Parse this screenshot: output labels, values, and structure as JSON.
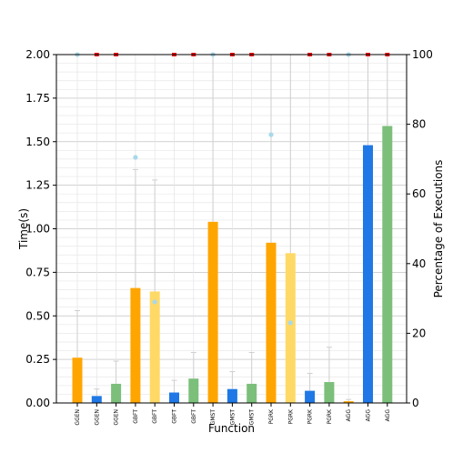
{
  "chart_data": {
    "type": "bar",
    "title": "",
    "xlabel": "Function",
    "ylabel": "Time(s)",
    "y2label": "Percentage of Executions",
    "ylim": [
      0,
      2.0
    ],
    "y2lim": [
      0,
      100
    ],
    "yticks": [
      "0.00",
      "0.25",
      "0.50",
      "0.75",
      "1.00",
      "1.25",
      "1.50",
      "1.75",
      "2.00"
    ],
    "y2ticks": [
      "0",
      "20",
      "40",
      "60",
      "80",
      "100"
    ],
    "grid": true,
    "legend": "none",
    "categories": [
      "GGEN",
      "GGEN",
      "GGEN",
      "GBFT",
      "GBFT",
      "GBFT",
      "GBFT",
      "GMST",
      "GMST",
      "GMST",
      "PGRK",
      "PGRK",
      "PGRK",
      "PGRK",
      "AGG",
      "AGG",
      "AGG"
    ],
    "values": [
      0.26,
      0.04,
      0.11,
      0.66,
      0.64,
      0.06,
      0.14,
      1.04,
      0.08,
      0.11,
      0.92,
      0.86,
      0.07,
      0.12,
      0.01,
      1.48,
      1.59
    ],
    "error_upper": [
      0.53,
      0.08,
      0.24,
      1.34,
      1.28,
      0.13,
      0.29,
      2.0,
      0.18,
      0.29,
      2.0,
      2.0,
      0.17,
      0.32,
      0.02,
      2.0,
      2.0
    ],
    "bar_colors": [
      "#ffa500",
      "#1f78e6",
      "#7bbf7b",
      "#ffa500",
      "#ffd966",
      "#1f78e6",
      "#7bbf7b",
      "#ffa500",
      "#1f78e6",
      "#7bbf7b",
      "#ffa500",
      "#ffd966",
      "#1f78e6",
      "#7bbf7b",
      "#ffa500",
      "#1f78e6",
      "#7bbf7b"
    ],
    "percentage_markers": [
      {
        "index": 0,
        "pct": 100,
        "color": "#a8d8ea"
      },
      {
        "index": 1,
        "pct": 100,
        "color": "#ee1111"
      },
      {
        "index": 2,
        "pct": 100,
        "color": "#ee1111"
      },
      {
        "index": 3,
        "pct": 70.5,
        "color": "#a8d8ea"
      },
      {
        "index": 4,
        "pct": 29,
        "color": "#a8d8ea"
      },
      {
        "index": 5,
        "pct": 100,
        "color": "#ee1111"
      },
      {
        "index": 6,
        "pct": 100,
        "color": "#ee1111"
      },
      {
        "index": 7,
        "pct": 100,
        "color": "#a8d8ea"
      },
      {
        "index": 8,
        "pct": 100,
        "color": "#ee1111"
      },
      {
        "index": 9,
        "pct": 100,
        "color": "#ee1111"
      },
      {
        "index": 10,
        "pct": 77,
        "color": "#a8d8ea"
      },
      {
        "index": 11,
        "pct": 23,
        "color": "#a8d8ea"
      },
      {
        "index": 12,
        "pct": 100,
        "color": "#ee1111"
      },
      {
        "index": 13,
        "pct": 100,
        "color": "#ee1111"
      },
      {
        "index": 14,
        "pct": 100,
        "color": "#a8d8ea"
      },
      {
        "index": 15,
        "pct": 100,
        "color": "#ee1111"
      },
      {
        "index": 16,
        "pct": 100,
        "color": "#ee1111"
      }
    ]
  }
}
